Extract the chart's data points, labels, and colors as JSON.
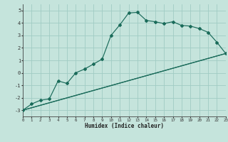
{
  "xlabel": "Humidex (Indice chaleur)",
  "bg_color": "#c5e4dc",
  "grid_color": "#a0ccc4",
  "line_color": "#1a6b5a",
  "xlim": [
    0,
    23
  ],
  "ylim": [
    -3.5,
    5.5
  ],
  "xticks": [
    0,
    1,
    2,
    3,
    4,
    5,
    6,
    7,
    8,
    9,
    10,
    11,
    12,
    13,
    14,
    15,
    16,
    17,
    18,
    19,
    20,
    21,
    22,
    23
  ],
  "yticks": [
    -3,
    -2,
    -1,
    0,
    1,
    2,
    3,
    4,
    5
  ],
  "curve_x": [
    0,
    1,
    2,
    3,
    4,
    5,
    6,
    7,
    8,
    9,
    10,
    11,
    12,
    13,
    14,
    15,
    16,
    17,
    18,
    19,
    20,
    21,
    22,
    23
  ],
  "curve_y": [
    -3.0,
    -2.5,
    -2.2,
    -2.1,
    -0.65,
    -0.85,
    0.0,
    0.3,
    0.7,
    1.1,
    3.0,
    3.85,
    4.8,
    4.85,
    4.2,
    4.1,
    3.95,
    4.1,
    3.8,
    3.75,
    3.55,
    3.25,
    2.45,
    1.55
  ],
  "line1": [
    [
      0,
      23
    ],
    [
      -3.0,
      1.55
    ]
  ],
  "line2": [
    [
      0,
      23
    ],
    [
      -3.0,
      1.55
    ]
  ]
}
